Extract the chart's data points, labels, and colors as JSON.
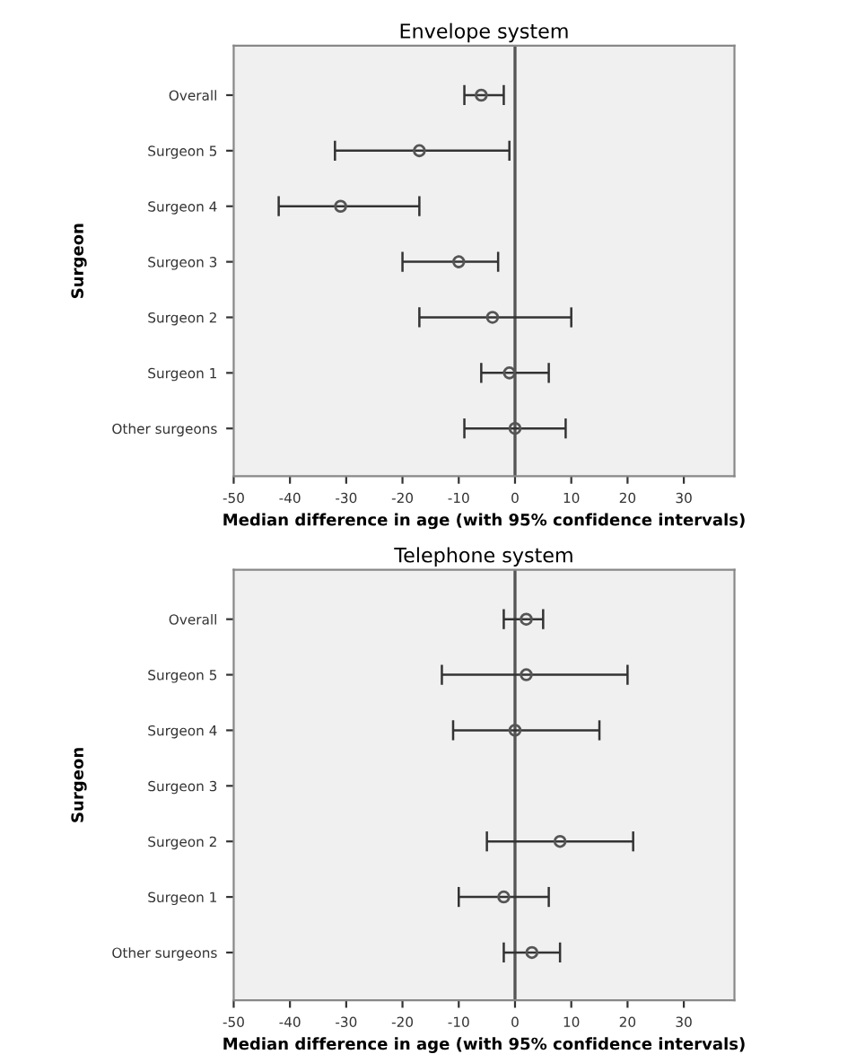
{
  "chart_data": [
    {
      "type": "scatter",
      "title": "Envelope system",
      "xlabel": "Median difference in age (with 95% confidence intervals)",
      "ylabel": "Surgeon",
      "orientation": "horizontal",
      "categories": [
        "Overall",
        "Surgeon 5",
        "Surgeon 4",
        "Surgeon 3",
        "Surgeon 2",
        "Surgeon 1",
        "Other surgeons"
      ],
      "series": [
        {
          "color": "#555555",
          "values": [
            -6,
            -17,
            -31,
            -10,
            -4,
            -1,
            0
          ],
          "errors": [
            [
              -9,
              -2
            ],
            [
              -32,
              -1
            ],
            [
              -42,
              -17
            ],
            [
              -20,
              -3
            ],
            [
              -17,
              10
            ],
            [
              -6,
              6
            ],
            [
              -9,
              9
            ]
          ]
        }
      ],
      "xlim": [
        -50,
        39
      ],
      "xticks": [
        -50,
        -40,
        -30,
        -20,
        -10,
        0,
        10,
        20,
        30
      ],
      "ref_lines": [
        {
          "axis": "x",
          "value": 0,
          "color": "#555555"
        }
      ],
      "marker": "circle",
      "grid": false,
      "legend": false
    },
    {
      "type": "scatter",
      "title": "Telephone system",
      "xlabel": "Median difference in age (with 95% confidence intervals)",
      "ylabel": "Surgeon",
      "orientation": "horizontal",
      "categories": [
        "Overall",
        "Surgeon 5",
        "Surgeon 4",
        "Surgeon 3",
        "Surgeon 2",
        "Surgeon 1",
        "Other surgeons"
      ],
      "series": [
        {
          "color": "#555555",
          "values": [
            2,
            2,
            0,
            null,
            8,
            -2,
            3
          ],
          "errors": [
            [
              -2,
              5
            ],
            [
              -13,
              20
            ],
            [
              -11,
              15
            ],
            null,
            [
              -5,
              21
            ],
            [
              -10,
              6
            ],
            [
              -2,
              8
            ]
          ]
        }
      ],
      "xlim": [
        -50,
        39
      ],
      "xticks": [
        -50,
        -40,
        -30,
        -20,
        -10,
        0,
        10,
        20,
        30
      ],
      "ref_lines": [
        {
          "axis": "x",
          "value": 0,
          "color": "#555555"
        }
      ],
      "marker": "circle",
      "grid": false,
      "legend": false
    }
  ]
}
